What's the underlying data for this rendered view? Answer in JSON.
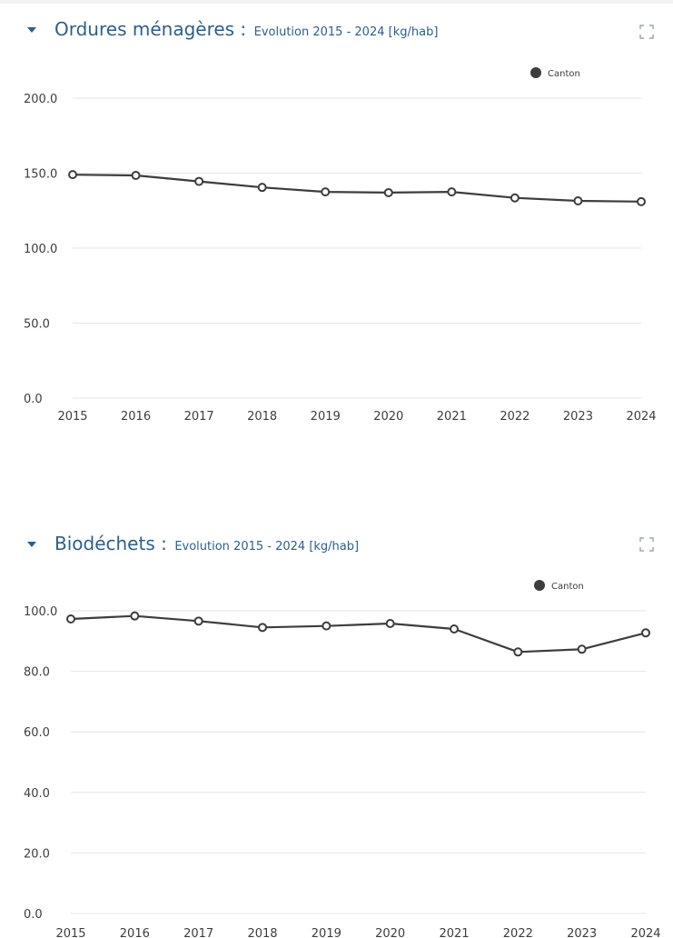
{
  "colors": {
    "title": "#2c5f8a",
    "series_line": "#3d3d3d",
    "grid": "#e6e6e6",
    "text": "#3d3d3d",
    "icon": "#2c5f8a"
  },
  "icons": {
    "collapse": "caret-down-icon",
    "expand": "fullscreen-icon"
  },
  "panels": [
    {
      "title": "Ordures ménagères :",
      "subtitle": "Evolution 2015 - 2024 [kg/hab]"
    },
    {
      "title": "Biodéchets :",
      "subtitle": "Evolution 2015 - 2024 [kg/hab]"
    }
  ],
  "chart_data": [
    {
      "type": "line",
      "title": "Ordures ménagères : Evolution 2015 - 2024 [kg/hab]",
      "x": [
        "2015",
        "2016",
        "2017",
        "2018",
        "2019",
        "2020",
        "2021",
        "2022",
        "2023",
        "2024"
      ],
      "series": [
        {
          "name": "Canton",
          "values": [
            149,
            148.5,
            144.5,
            140.5,
            137.5,
            137,
            137.5,
            133.5,
            131.5,
            131
          ]
        }
      ],
      "ylim": [
        0,
        200
      ],
      "yticks": [
        "0.0",
        "50.0",
        "100.0",
        "150.0",
        "200.0"
      ],
      "grid": true,
      "legend": "top-right",
      "xlabel": "",
      "ylabel": ""
    },
    {
      "type": "line",
      "title": "Biodéchets : Evolution 2015 - 2024 [kg/hab]",
      "x": [
        "2015",
        "2016",
        "2017",
        "2018",
        "2019",
        "2020",
        "2021",
        "2022",
        "2023",
        "2024"
      ],
      "series": [
        {
          "name": "Canton",
          "values": [
            97.3,
            98.3,
            96.6,
            94.5,
            95,
            95.8,
            94,
            86.4,
            87.3,
            92.7
          ]
        }
      ],
      "ylim": [
        0,
        100
      ],
      "yticks": [
        "0.0",
        "20.0",
        "40.0",
        "60.0",
        "80.0",
        "100.0"
      ],
      "grid": true,
      "legend": "top-right",
      "xlabel": "",
      "ylabel": ""
    }
  ]
}
